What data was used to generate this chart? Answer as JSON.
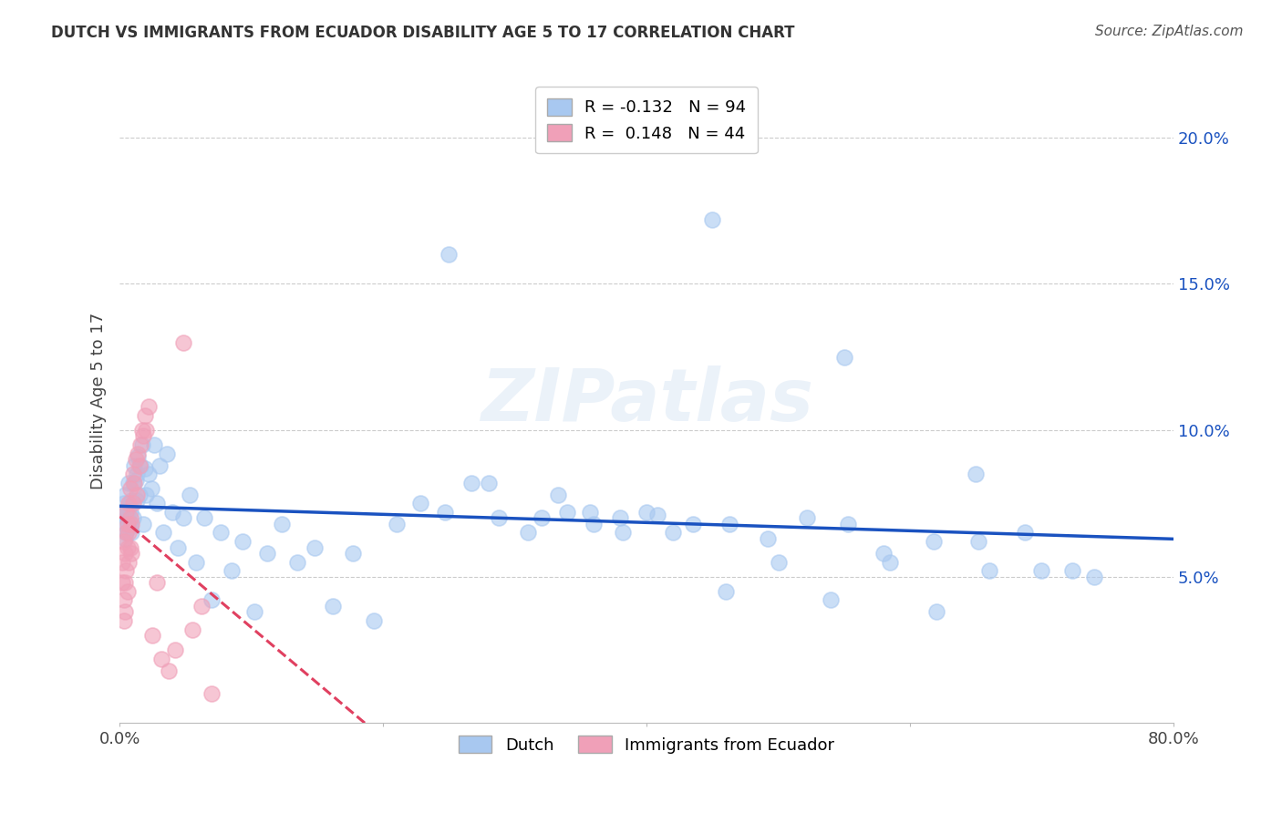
{
  "title": "DUTCH VS IMMIGRANTS FROM ECUADOR DISABILITY AGE 5 TO 17 CORRELATION CHART",
  "source": "Source: ZipAtlas.com",
  "ylabel": "Disability Age 5 to 17",
  "legend_dutch": "Dutch",
  "legend_ecuador": "Immigrants from Ecuador",
  "dutch_color": "#a8c8f0",
  "ecuador_color": "#f0a0b8",
  "dutch_line_color": "#1a52c0",
  "ecuador_line_color": "#e04060",
  "dutch_r": -0.132,
  "dutch_n": 94,
  "ecuador_r": 0.148,
  "ecuador_n": 44,
  "xlim": [
    0.0,
    0.8
  ],
  "ylim": [
    0.0,
    0.22
  ],
  "yticks": [
    0.05,
    0.1,
    0.15,
    0.2
  ],
  "ytick_labels": [
    "5.0%",
    "10.0%",
    "15.0%",
    "20.0%"
  ],
  "dutch_x": [
    0.002,
    0.003,
    0.003,
    0.004,
    0.004,
    0.005,
    0.005,
    0.006,
    0.006,
    0.006,
    0.007,
    0.007,
    0.007,
    0.008,
    0.008,
    0.009,
    0.009,
    0.01,
    0.01,
    0.011,
    0.012,
    0.013,
    0.013,
    0.014,
    0.015,
    0.016,
    0.017,
    0.018,
    0.019,
    0.02,
    0.022,
    0.024,
    0.026,
    0.028,
    0.03,
    0.033,
    0.036,
    0.04,
    0.044,
    0.048,
    0.053,
    0.058,
    0.064,
    0.07,
    0.077,
    0.085,
    0.093,
    0.102,
    0.112,
    0.123,
    0.135,
    0.148,
    0.162,
    0.177,
    0.193,
    0.21,
    0.228,
    0.247,
    0.267,
    0.288,
    0.31,
    0.333,
    0.357,
    0.382,
    0.408,
    0.435,
    0.463,
    0.492,
    0.522,
    0.553,
    0.585,
    0.618,
    0.652,
    0.687,
    0.723,
    0.34,
    0.38,
    0.42,
    0.46,
    0.5,
    0.54,
    0.58,
    0.62,
    0.66,
    0.7,
    0.74,
    0.28,
    0.32,
    0.36,
    0.4,
    0.25,
    0.45,
    0.55,
    0.65
  ],
  "dutch_y": [
    0.072,
    0.068,
    0.075,
    0.063,
    0.078,
    0.07,
    0.065,
    0.073,
    0.068,
    0.071,
    0.069,
    0.074,
    0.082,
    0.072,
    0.067,
    0.076,
    0.065,
    0.082,
    0.07,
    0.088,
    0.083,
    0.076,
    0.085,
    0.091,
    0.078,
    0.088,
    0.095,
    0.068,
    0.087,
    0.078,
    0.085,
    0.08,
    0.095,
    0.075,
    0.088,
    0.065,
    0.092,
    0.072,
    0.06,
    0.07,
    0.078,
    0.055,
    0.07,
    0.042,
    0.065,
    0.052,
    0.062,
    0.038,
    0.058,
    0.068,
    0.055,
    0.06,
    0.04,
    0.058,
    0.035,
    0.068,
    0.075,
    0.072,
    0.082,
    0.07,
    0.065,
    0.078,
    0.072,
    0.065,
    0.071,
    0.068,
    0.068,
    0.063,
    0.07,
    0.068,
    0.055,
    0.062,
    0.062,
    0.065,
    0.052,
    0.072,
    0.07,
    0.065,
    0.045,
    0.055,
    0.042,
    0.058,
    0.038,
    0.052,
    0.052,
    0.05,
    0.082,
    0.07,
    0.068,
    0.072,
    0.16,
    0.172,
    0.125,
    0.085
  ],
  "ecuador_x": [
    0.002,
    0.002,
    0.003,
    0.003,
    0.003,
    0.004,
    0.004,
    0.004,
    0.005,
    0.005,
    0.005,
    0.006,
    0.006,
    0.006,
    0.007,
    0.007,
    0.007,
    0.008,
    0.008,
    0.008,
    0.009,
    0.009,
    0.01,
    0.01,
    0.011,
    0.012,
    0.013,
    0.014,
    0.015,
    0.016,
    0.017,
    0.018,
    0.019,
    0.02,
    0.022,
    0.025,
    0.028,
    0.032,
    0.037,
    0.042,
    0.048,
    0.055,
    0.062,
    0.07
  ],
  "ecuador_y": [
    0.048,
    0.055,
    0.062,
    0.042,
    0.035,
    0.058,
    0.048,
    0.038,
    0.065,
    0.052,
    0.072,
    0.06,
    0.068,
    0.045,
    0.065,
    0.055,
    0.075,
    0.07,
    0.06,
    0.08,
    0.068,
    0.058,
    0.075,
    0.085,
    0.082,
    0.09,
    0.078,
    0.092,
    0.088,
    0.095,
    0.1,
    0.098,
    0.105,
    0.1,
    0.108,
    0.03,
    0.048,
    0.022,
    0.018,
    0.025,
    0.13,
    0.032,
    0.04,
    0.01
  ],
  "watermark": "ZIPatlas",
  "background_color": "#ffffff",
  "grid_color": "#cccccc"
}
